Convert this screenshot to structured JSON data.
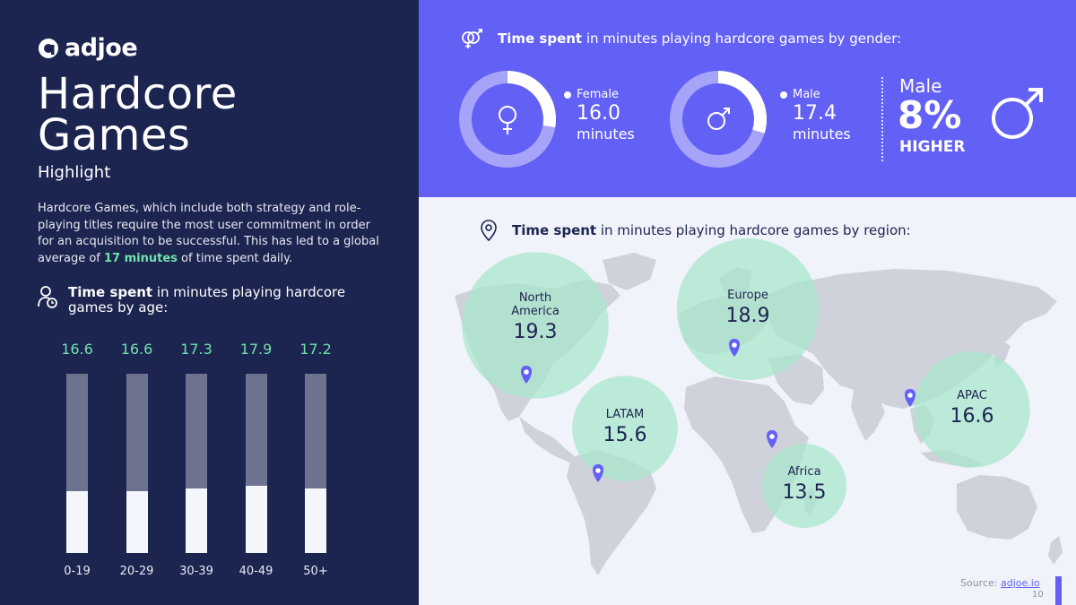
{
  "brand": {
    "name": "adjoe"
  },
  "title_line1": "Hardcore",
  "title_line2": "Games",
  "subtitle": "Highlight",
  "description": {
    "before": "Hardcore Games, which include both strategy and role-playing titles require the most user commitment in order for an acquisition to be successful. This has led to a global average of ",
    "highlight": "17 minutes",
    "after": " of time spent daily."
  },
  "age_section": {
    "bold": "Time spent",
    "rest": " in minutes playing hardcore games by age:"
  },
  "gender_section": {
    "bold": "Time spent",
    "rest": " in minutes playing hardcore games by gender:",
    "female": {
      "label": "Female",
      "value": "16.0",
      "unit": "minutes"
    },
    "male": {
      "label": "Male",
      "value": "17.4",
      "unit": "minutes"
    },
    "comparison": {
      "line1": "Male",
      "line2": "8%",
      "line3": "HIGHER"
    }
  },
  "region_section": {
    "bold": "Time spent",
    "rest": " in minutes playing hardcore games by region:"
  },
  "source": {
    "label": "Source: ",
    "link": "adjoe.io"
  },
  "page_number": "10",
  "colors": {
    "navy": "#1c2450",
    "purple": "#6360f5",
    "green": "#6fe3ab",
    "bubble": "#a8e6cc"
  },
  "chart_data": [
    {
      "type": "bar",
      "title": "Time spent in minutes playing hardcore games by age:",
      "categories": [
        "0-19",
        "20-29",
        "30-39",
        "40-49",
        "50+"
      ],
      "values": [
        16.6,
        16.6,
        17.3,
        17.9,
        17.2
      ],
      "value_labels": [
        "16.6",
        "16.6",
        "17.3",
        "17.9",
        "17.2"
      ]
    },
    {
      "type": "pie",
      "title": "Time spent in minutes playing hardcore games by gender:",
      "categories": [
        "Female",
        "Male"
      ],
      "values": [
        16.0,
        17.4
      ],
      "value_labels": [
        "16.0",
        "17.4"
      ]
    },
    {
      "type": "scatter",
      "title": "Time spent in minutes playing hardcore games by region:",
      "categories": [
        "North America",
        "Europe",
        "LATAM",
        "APAC",
        "Africa"
      ],
      "values": [
        19.3,
        18.9,
        15.6,
        16.6,
        13.5
      ],
      "labels": [
        [
          "North",
          "America"
        ],
        [
          "Europe"
        ],
        [
          "LATAM"
        ],
        [
          "APAC"
        ],
        [
          "Africa"
        ]
      ],
      "value_labels": [
        "19.3",
        "18.9",
        "15.6",
        "16.6",
        "13.5"
      ]
    }
  ]
}
